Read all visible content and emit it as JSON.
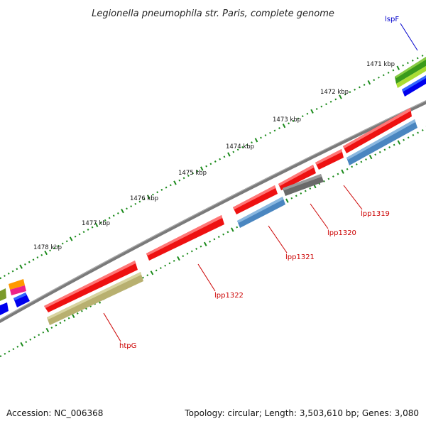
{
  "title": "Legionella pneumophila str. Paris, complete genome",
  "accession_text": "Accession: NC_006368",
  "topology_text": "Topology: circular; Length: 3,503,610 bp; Genes: 3,080",
  "ticks": [
    {
      "label": "1471 kbp"
    },
    {
      "label": "1472 kbp"
    },
    {
      "label": "1473 kbp"
    },
    {
      "label": "1474 kbp"
    },
    {
      "label": "1475 kbp"
    },
    {
      "label": "1476 kbp"
    },
    {
      "label": "1477 kbp"
    },
    {
      "label": "1478 kbp"
    }
  ],
  "gene_labels": [
    {
      "name": "lspF",
      "color": "#0000cc"
    },
    {
      "name": "lpp1319",
      "color": "#cc0000"
    },
    {
      "name": "lpp1320",
      "color": "#cc0000"
    },
    {
      "name": "lpp1321",
      "color": "#cc0000"
    },
    {
      "name": "lpp1322",
      "color": "#cc0000"
    },
    {
      "name": "htpG",
      "color": "#cc0000"
    }
  ],
  "colors": {
    "forward_cds": "#ee1111",
    "backbone": "#7a7a7a",
    "tick_marks": "#1a8a1a",
    "blast_blue": "#4a86c0",
    "blast_gray": "#6a6a6a",
    "blast_khaki": "#b8b070",
    "blue_track": "#0000ee",
    "green_track": "#3a9a1a",
    "lime_track": "#aadd33",
    "orange_track": "#ff9900",
    "magenta_track": "#ee2288"
  }
}
